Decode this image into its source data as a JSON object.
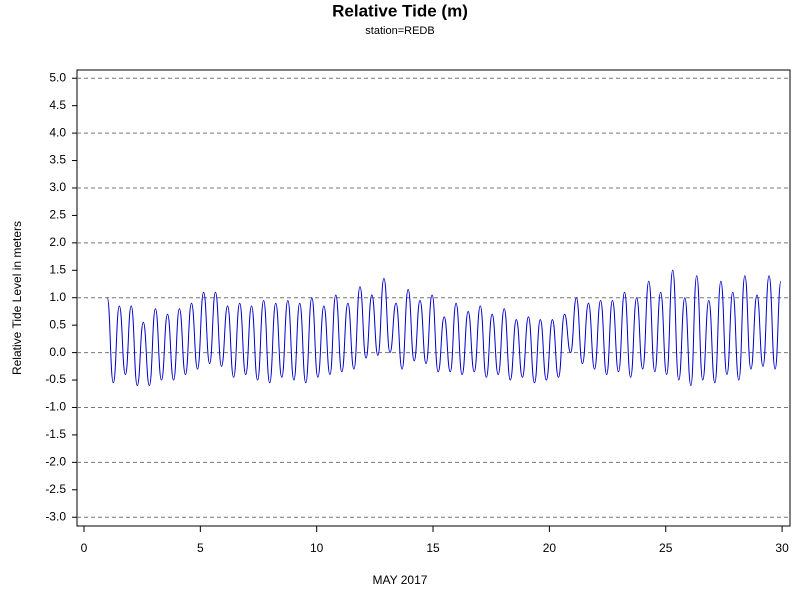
{
  "chart_data": {
    "type": "line",
    "title": "Relative Tide (m)",
    "subtitle": "station=REDB",
    "x_label": "MAY 2017",
    "y_label": "Relative Tide Level in meters",
    "xlim": [
      -0.3,
      30.34
    ],
    "xticks": [
      0,
      5,
      10,
      15,
      20,
      25,
      30
    ],
    "ylim": [
      -3.16,
      5.15
    ],
    "yticks": [
      {
        "value": 5,
        "label": "5.0"
      },
      {
        "value": 4.5,
        "label": "4.5"
      },
      {
        "value": 4,
        "label": "4.0"
      },
      {
        "value": 3.5,
        "label": "3.5"
      },
      {
        "value": 3,
        "label": "3.0"
      },
      {
        "value": 2.5,
        "label": "2.5"
      },
      {
        "value": 2,
        "label": "2.0"
      },
      {
        "value": 1.5,
        "label": "1.5"
      },
      {
        "value": 1,
        "label": "1.0"
      },
      {
        "value": 0.5,
        "label": "0.5"
      },
      {
        "value": 0,
        "label": "0.0"
      },
      {
        "value": -0.5,
        "label": "-0.5"
      },
      {
        "value": -1,
        "label": "-1.0"
      },
      {
        "value": -1.5,
        "label": "-1.5"
      },
      {
        "value": -2,
        "label": "-2.0"
      },
      {
        "value": -2.5,
        "label": "-2.5"
      },
      {
        "value": -3,
        "label": "-3.0"
      }
    ],
    "grid": true,
    "x": [
      1.0,
      1.26,
      1.52,
      1.78,
      2.03,
      2.29,
      2.55,
      2.81,
      3.07,
      3.33,
      3.59,
      3.85,
      4.1,
      4.36,
      4.62,
      4.88,
      5.14,
      5.4,
      5.65,
      5.91,
      6.17,
      6.43,
      6.69,
      6.95,
      7.2,
      7.46,
      7.72,
      7.98,
      8.24,
      8.5,
      8.76,
      9.02,
      9.27,
      9.53,
      9.79,
      10.05,
      10.31,
      10.57,
      10.82,
      11.08,
      11.34,
      11.6,
      11.86,
      12.12,
      12.37,
      12.63,
      12.89,
      13.15,
      13.41,
      13.67,
      13.93,
      14.19,
      14.44,
      14.7,
      14.96,
      15.22,
      15.48,
      15.74,
      15.99,
      16.25,
      16.51,
      16.77,
      17.03,
      17.29,
      17.54,
      17.8,
      18.06,
      18.32,
      18.58,
      18.84,
      19.1,
      19.36,
      19.61,
      19.87,
      20.13,
      20.39,
      20.65,
      20.91,
      21.16,
      21.42,
      21.68,
      21.94,
      22.2,
      22.46,
      22.71,
      22.97,
      23.23,
      23.49,
      23.75,
      24.01,
      24.27,
      24.53,
      24.78,
      25.04,
      25.3,
      25.56,
      25.82,
      26.08,
      26.33,
      26.59,
      26.85,
      27.11,
      27.37,
      27.63,
      27.88,
      28.14,
      28.4,
      28.66,
      28.92,
      29.18,
      29.44,
      29.7,
      29.95
    ],
    "series": [
      {
        "color": "#0000cc",
        "values": [
          1.0,
          -0.55,
          0.85,
          -0.4,
          0.85,
          -0.6,
          0.55,
          -0.6,
          0.8,
          -0.5,
          0.7,
          -0.5,
          0.8,
          -0.4,
          0.9,
          -0.3,
          1.1,
          -0.2,
          1.1,
          -0.25,
          0.85,
          -0.45,
          0.9,
          -0.4,
          0.85,
          -0.5,
          0.95,
          -0.55,
          0.9,
          -0.45,
          0.95,
          -0.5,
          0.9,
          -0.55,
          1.0,
          -0.45,
          0.85,
          -0.4,
          1.05,
          -0.35,
          0.9,
          -0.3,
          1.2,
          -0.1,
          1.05,
          -0.05,
          1.35,
          0.0,
          0.9,
          -0.3,
          1.15,
          -0.15,
          0.95,
          -0.2,
          1.05,
          -0.35,
          0.65,
          -0.35,
          0.9,
          -0.4,
          0.75,
          -0.35,
          0.85,
          -0.45,
          0.7,
          -0.4,
          0.8,
          -0.5,
          0.6,
          -0.45,
          0.65,
          -0.55,
          0.6,
          -0.5,
          0.6,
          -0.45,
          0.7,
          0.0,
          1.0,
          -0.2,
          0.9,
          -0.3,
          0.95,
          -0.4,
          0.95,
          -0.35,
          1.1,
          -0.45,
          1.0,
          -0.3,
          1.3,
          -0.35,
          1.1,
          -0.4,
          1.5,
          -0.5,
          1.0,
          -0.6,
          1.4,
          -0.5,
          0.95,
          -0.55,
          1.3,
          -0.4,
          1.1,
          -0.5,
          1.4,
          -0.3,
          1.05,
          -0.25,
          1.4,
          -0.3,
          1.3
        ]
      }
    ]
  }
}
